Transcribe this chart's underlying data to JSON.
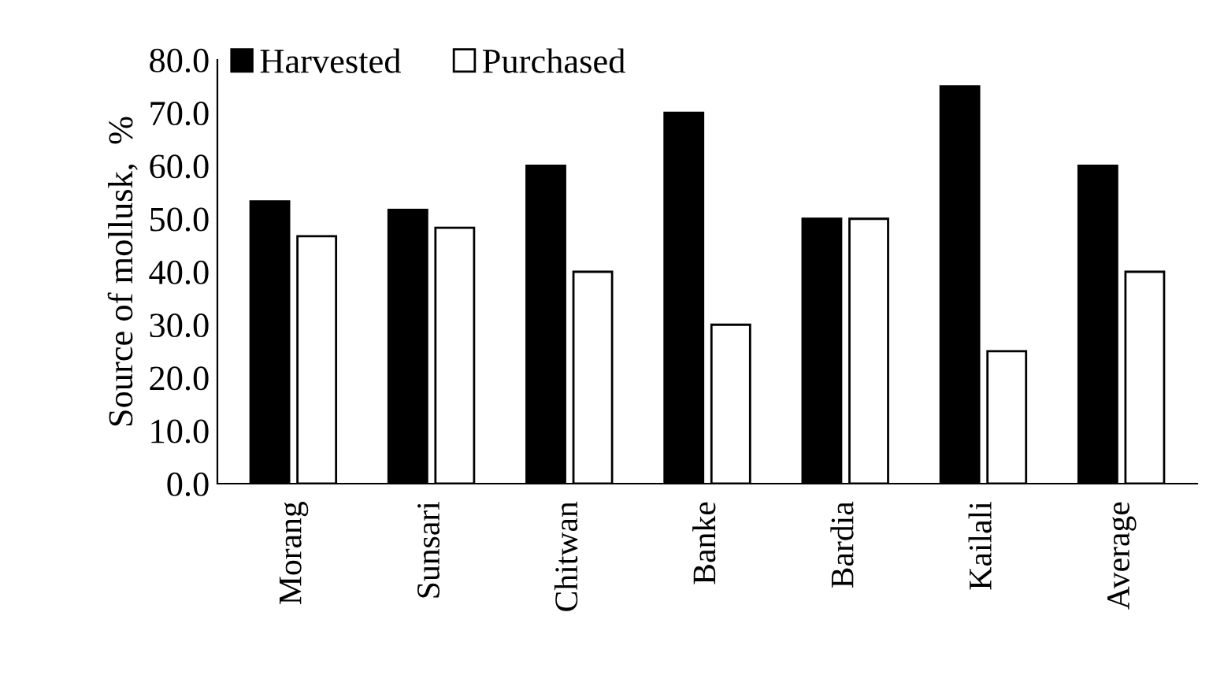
{
  "chart_data": {
    "type": "bar",
    "ylabel": "Source of mollusk,  %",
    "categories": [
      "Morang",
      "Sunsari",
      "Chitwan",
      "Banke",
      "Bardia",
      "Kailali",
      "Average"
    ],
    "series": [
      {
        "name": "Harvested",
        "color": "#000000",
        "values": [
          53.3,
          51.7,
          60.0,
          70.0,
          50.0,
          75.0,
          60.0
        ]
      },
      {
        "name": "Purchased",
        "color": "#ffffff",
        "values": [
          46.7,
          48.3,
          40.0,
          30.0,
          50.0,
          25.0,
          40.0
        ]
      }
    ],
    "ylim": [
      0,
      80
    ],
    "yticks": [
      {
        "value": 0,
        "label": "0.0"
      },
      {
        "value": 10,
        "label": "10.0"
      },
      {
        "value": 20,
        "label": "20.0"
      },
      {
        "value": 30,
        "label": "30.0"
      },
      {
        "value": 40,
        "label": "40.0"
      },
      {
        "value": 50,
        "label": "50.0"
      },
      {
        "value": 60,
        "label": "60.0"
      },
      {
        "value": 70,
        "label": "70.0"
      },
      {
        "value": 80,
        "label": "80.0"
      }
    ],
    "grid": false,
    "legend": "top left"
  }
}
